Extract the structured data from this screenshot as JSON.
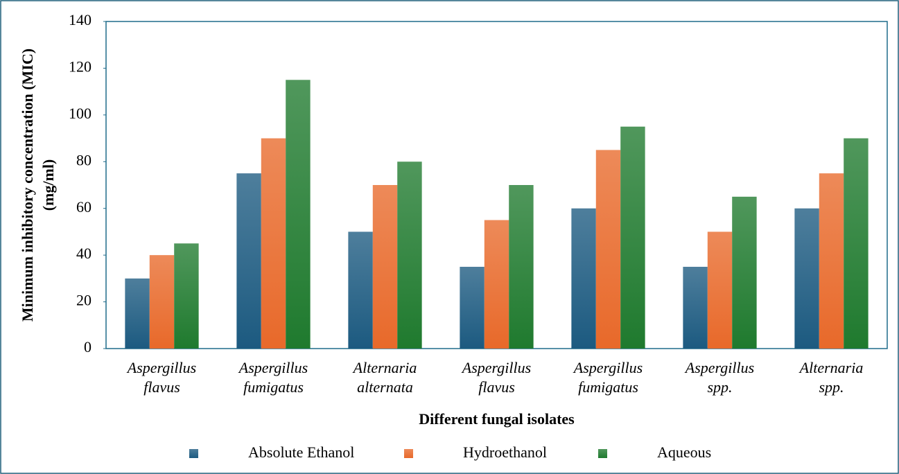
{
  "chart_data": {
    "type": "bar",
    "x_label": "Different fungal isolates",
    "y_label": [
      "Minimum inhibitory concentration  (MIC)",
      "(mg/ml)"
    ],
    "categories": [
      [
        "Aspergillus",
        "flavus"
      ],
      [
        "Aspergillus",
        "fumigatus"
      ],
      [
        "Alternaria",
        "alternata"
      ],
      [
        "Aspergillus",
        "flavus"
      ],
      [
        "Aspergillus",
        "fumigatus"
      ],
      [
        "Aspergillus",
        "spp."
      ],
      [
        "Alternaria",
        "spp."
      ]
    ],
    "series": [
      {
        "name": "Absolute Ethanol",
        "color": "#1c5a80",
        "values": [
          30,
          75,
          50,
          35,
          60,
          35,
          60
        ]
      },
      {
        "name": "Hydroethanol",
        "color": "#e8692a",
        "values": [
          40,
          90,
          70,
          55,
          85,
          50,
          75
        ]
      },
      {
        "name": "Aqueous",
        "color": "#1f7a2e",
        "values": [
          45,
          115,
          80,
          70,
          95,
          65,
          90
        ]
      }
    ],
    "ylim": [
      0,
      140
    ],
    "yticks": [
      0,
      20,
      40,
      60,
      80,
      100,
      120,
      140
    ],
    "grid": false,
    "legend": "bottom"
  }
}
